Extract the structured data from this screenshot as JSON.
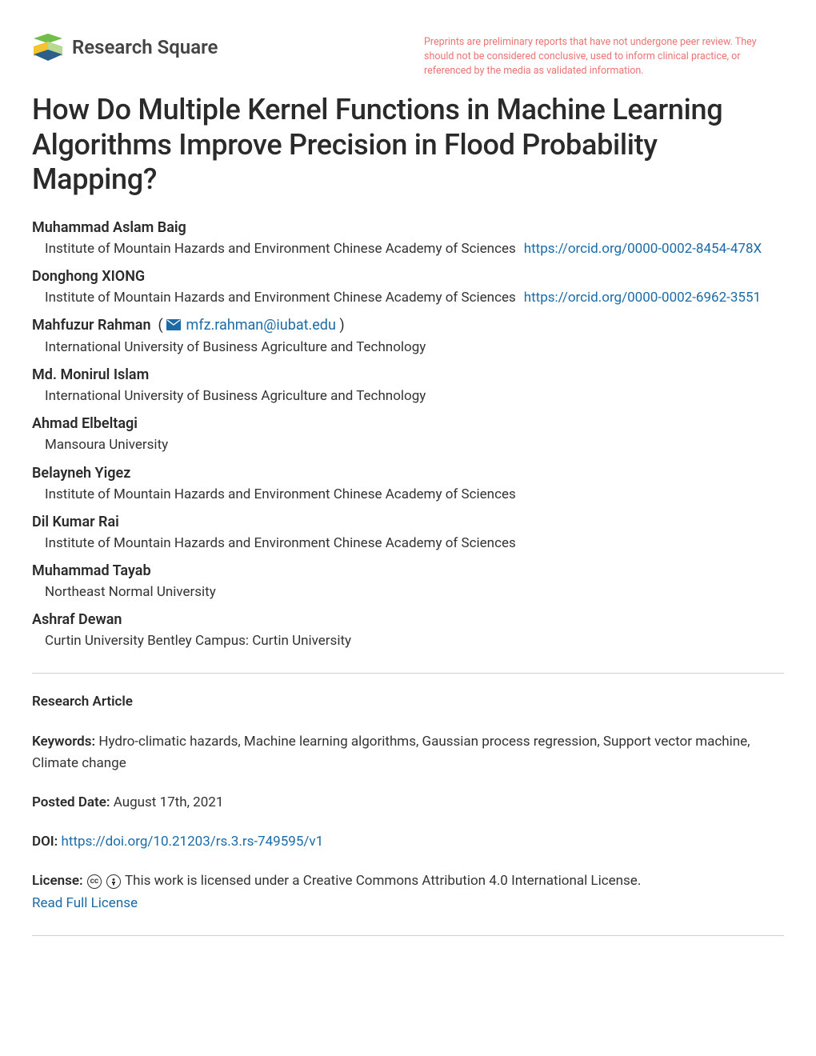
{
  "header": {
    "brand_name": "Research Square",
    "disclaimer": "Preprints are preliminary reports that have not undergone peer review. They should not be considered conclusive, used to inform clinical practice, or referenced by the media as validated information.",
    "logo_colors": {
      "top": "#71bf4a",
      "middle_left": "#f4c430",
      "bottom": "#2d5f8b"
    }
  },
  "title": "How Do Multiple Kernel Functions in Machine Learning Algorithms Improve Precision in Flood Probability Mapping?",
  "authors": [
    {
      "name": "Muhammad Aslam Baig",
      "affiliation": "Institute of Mountain Hazards and Environment Chinese Academy of Sciences",
      "orcid": "https://orcid.org/0000-0002-8454-478X",
      "orcid_inline": true
    },
    {
      "name": "Donghong XIONG",
      "affiliation": "Institute of Mountain Hazards and Environment Chinese Academy of Sciences",
      "orcid": "https://orcid.org/0000-0002-6962-3551",
      "orcid_inline": true
    },
    {
      "name": "Mahfuzur Rahman",
      "affiliation": "International University of Business Agriculture and Technology",
      "email": "mfz.rahman@iubat.edu",
      "corresponding": true
    },
    {
      "name": "Md. Monirul Islam",
      "affiliation": "International University of Business Agriculture and Technology"
    },
    {
      "name": "Ahmad Elbeltagi",
      "affiliation": "Mansoura University"
    },
    {
      "name": "Belayneh Yigez",
      "affiliation": "Institute of Mountain Hazards and Environment Chinese Academy of Sciences"
    },
    {
      "name": "Dil Kumar Rai",
      "affiliation": "Institute of Mountain Hazards and Environment Chinese Academy of Sciences"
    },
    {
      "name": "Muhammad Tayab",
      "affiliation": "Northeast Normal University"
    },
    {
      "name": "Ashraf Dewan",
      "affiliation": "Curtin University Bentley Campus: Curtin University"
    }
  ],
  "meta": {
    "article_type_label": "Research Article",
    "keywords_label": "Keywords:",
    "keywords": "Hydro-climatic hazards, Machine learning algorithms, Gaussian process regression, Support vector machine, Climate change",
    "posted_date_label": "Posted Date:",
    "posted_date": "August 17th, 2021",
    "doi_label": "DOI:",
    "doi": "https://doi.org/10.21203/rs.3.rs-749595/v1",
    "license_label": "License:",
    "license_text": "This work is licensed under a Creative Commons Attribution 4.0 International License.",
    "license_link_text": "Read Full License"
  },
  "colors": {
    "link": "#1a6ba8",
    "disclaimer": "#eb7474",
    "text": "#333333",
    "heading": "#2a2a2a",
    "divider": "#d0d0d0"
  }
}
